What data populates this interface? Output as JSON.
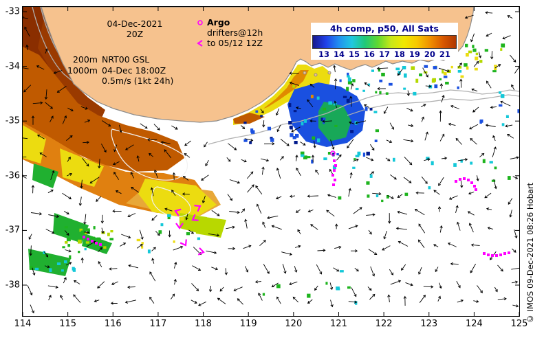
{
  "annotations": {
    "date": "04-Dec-2021",
    "time": "20Z",
    "depth1": "200m",
    "product": "NRT00 GSL",
    "depth2": "1000m",
    "vector_time": "04-Dec 18:00Z",
    "vector_scale": "0.5m/s (1kt 24h)"
  },
  "legend": {
    "argo": "Argo",
    "drifters_line1": "drifters@12h",
    "drifters_line2": "to 05/12 12Z"
  },
  "colorbar": {
    "title": "4h comp, p50, All Sats",
    "ticks": [
      "13",
      "14",
      "15",
      "16",
      "17",
      "18",
      "19",
      "20",
      "21"
    ],
    "gradient": [
      "#18188c",
      "#2040e8",
      "#2090f0",
      "#20c8e0",
      "#20c878",
      "#60d830",
      "#c8e818",
      "#f0e800",
      "#f8c800",
      "#f09000",
      "#d85800",
      "#b03800"
    ]
  },
  "axes": {
    "x_ticks": [
      "114",
      "115",
      "116",
      "117",
      "118",
      "119",
      "120",
      "121",
      "122",
      "123",
      "124",
      "125"
    ],
    "y_ticks": [
      "-33",
      "-34",
      "-35",
      "-36",
      "-37",
      "-38"
    ]
  },
  "credit": "© IMOS 09-Dec-2021 08:26 Hobart",
  "map_colors": {
    "land": "#f6c28e",
    "ocean": "#ffffff",
    "coastline": "#8c8c8c",
    "contour": "#b0b0b0",
    "marker": "#ff00ff",
    "vector": "#000000"
  }
}
